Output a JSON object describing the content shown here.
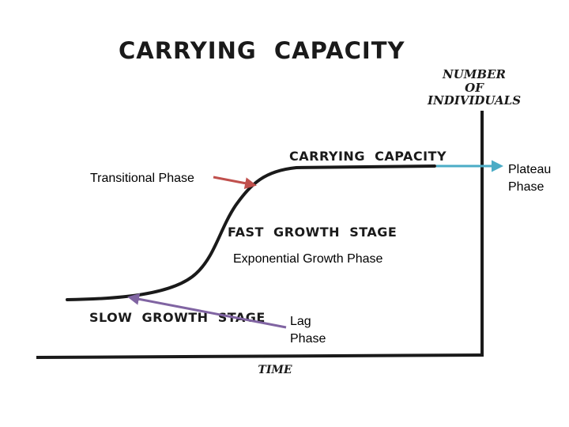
{
  "title": "CARRYING  CAPACITY",
  "y_axis": {
    "label_lines": [
      "NUMBER",
      "OF",
      "INDIVIDUALS"
    ]
  },
  "x_axis": {
    "label": "TIME"
  },
  "stage_labels": {
    "carrying_capacity": "CARRYING  CAPACITY",
    "fast_growth": "FAST  GROWTH  STAGE",
    "slow_growth": "SLOW  GROWTH  STAGE"
  },
  "annotations": {
    "transitional": "Transitional Phase",
    "plateau_lines": [
      "Plateau",
      "Phase"
    ],
    "exponential": "Exponential Growth Phase",
    "lag_lines": [
      "Lag",
      "Phase"
    ]
  },
  "colors": {
    "ink": "#1a1a1a",
    "transitional_arrow": "#c0504d",
    "plateau_arrow": "#4bacc6",
    "lag_arrow": "#8064a2"
  }
}
